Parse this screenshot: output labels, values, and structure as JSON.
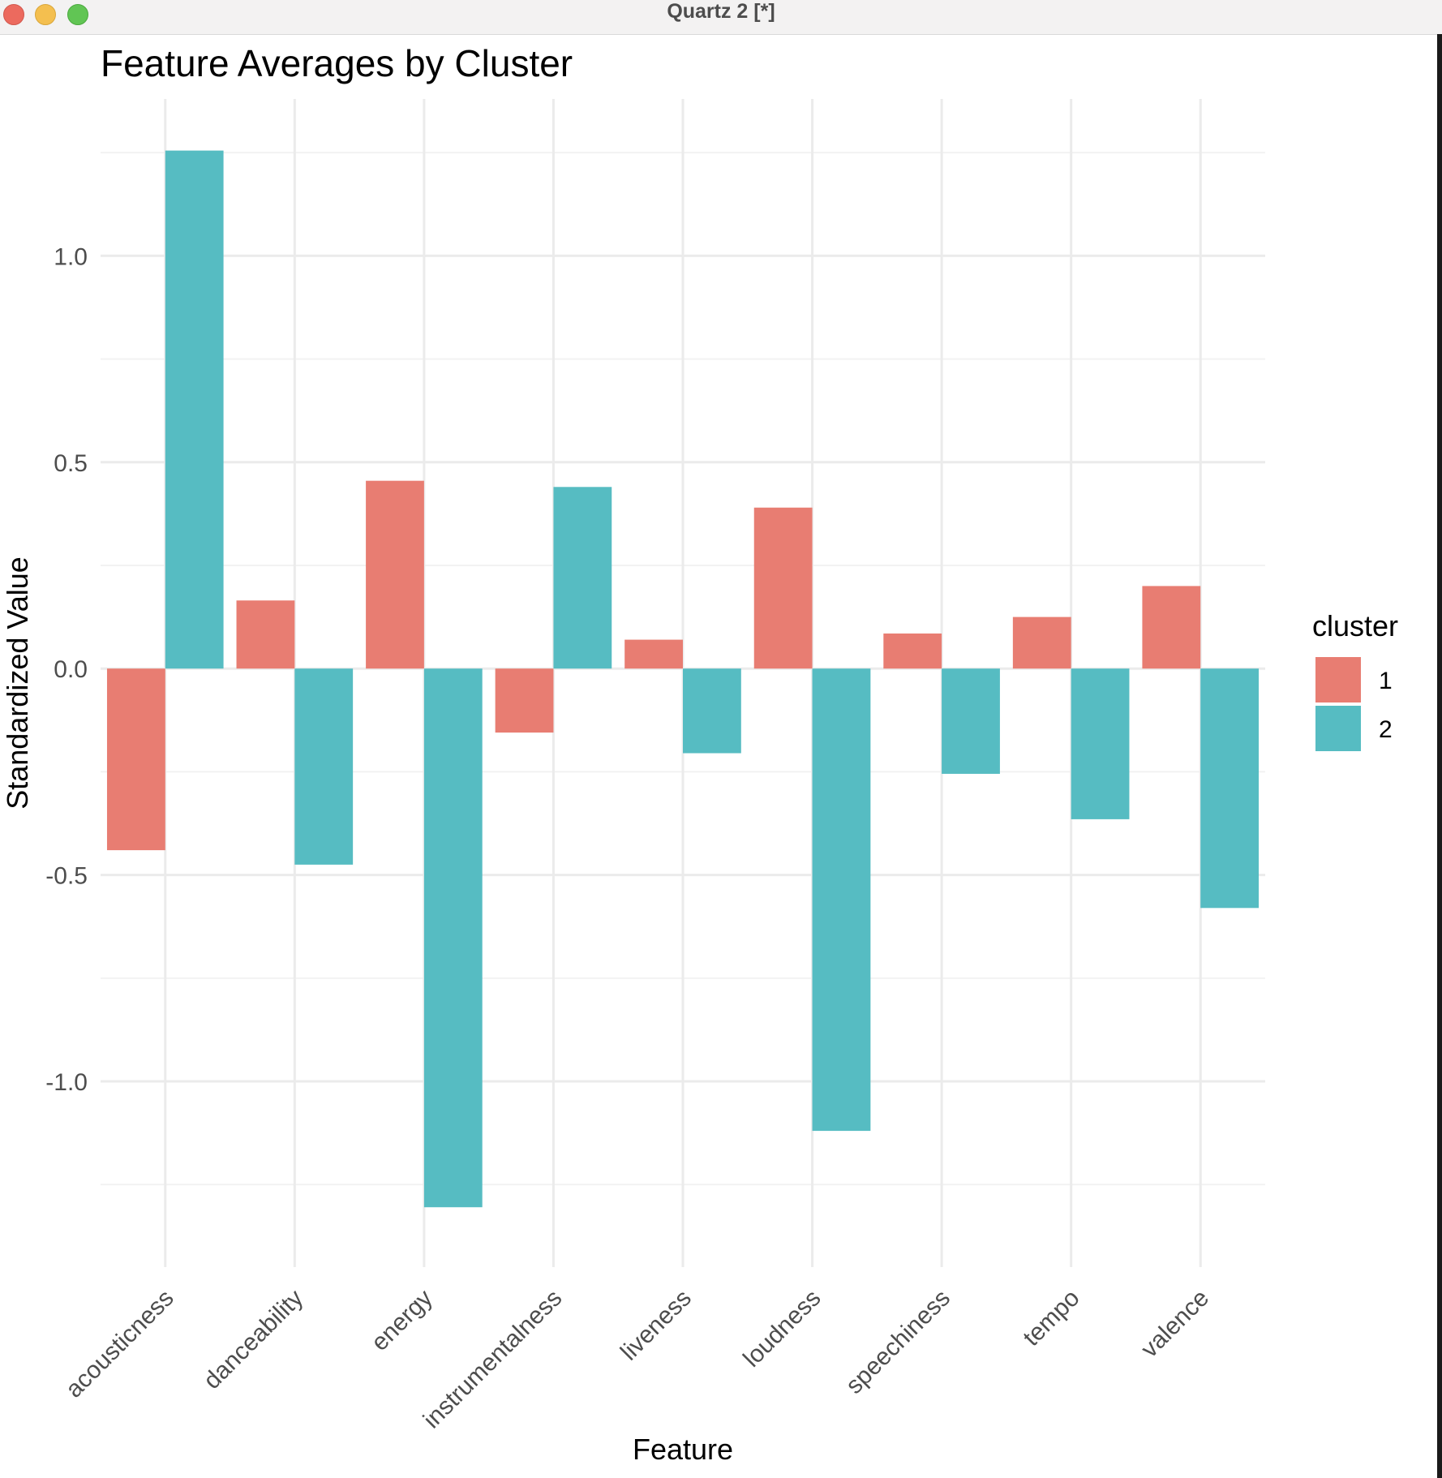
{
  "window": {
    "title": "Quartz 2 [*]"
  },
  "colors": {
    "cluster1": "#e87d72",
    "cluster2": "#56bcc2",
    "grid": "#ebebeb",
    "text": "#4d4d4d"
  },
  "chart_data": {
    "type": "bar",
    "title": "Feature Averages by Cluster",
    "xlabel": "Feature",
    "ylabel": "Standardized Value",
    "categories": [
      "acousticness",
      "danceability",
      "energy",
      "instrumentalness",
      "liveness",
      "loudness",
      "speechiness",
      "tempo",
      "valence"
    ],
    "series": [
      {
        "name": "1",
        "values": [
          -0.44,
          0.165,
          0.455,
          -0.155,
          0.07,
          0.39,
          0.085,
          0.125,
          0.2
        ]
      },
      {
        "name": "2",
        "values": [
          1.255,
          -0.475,
          -1.305,
          0.44,
          -0.205,
          -1.12,
          -0.255,
          -0.365,
          -0.58
        ]
      }
    ],
    "ylim": [
      -1.45,
      1.38
    ],
    "yticks": [
      -1.0,
      -0.5,
      0.0,
      0.5,
      1.0
    ],
    "ytick_labels": [
      "-1.0",
      "-0.5",
      "0.0",
      "0.5",
      "1.0"
    ],
    "legend": {
      "title": "cluster",
      "position": "right"
    },
    "grid": true
  }
}
